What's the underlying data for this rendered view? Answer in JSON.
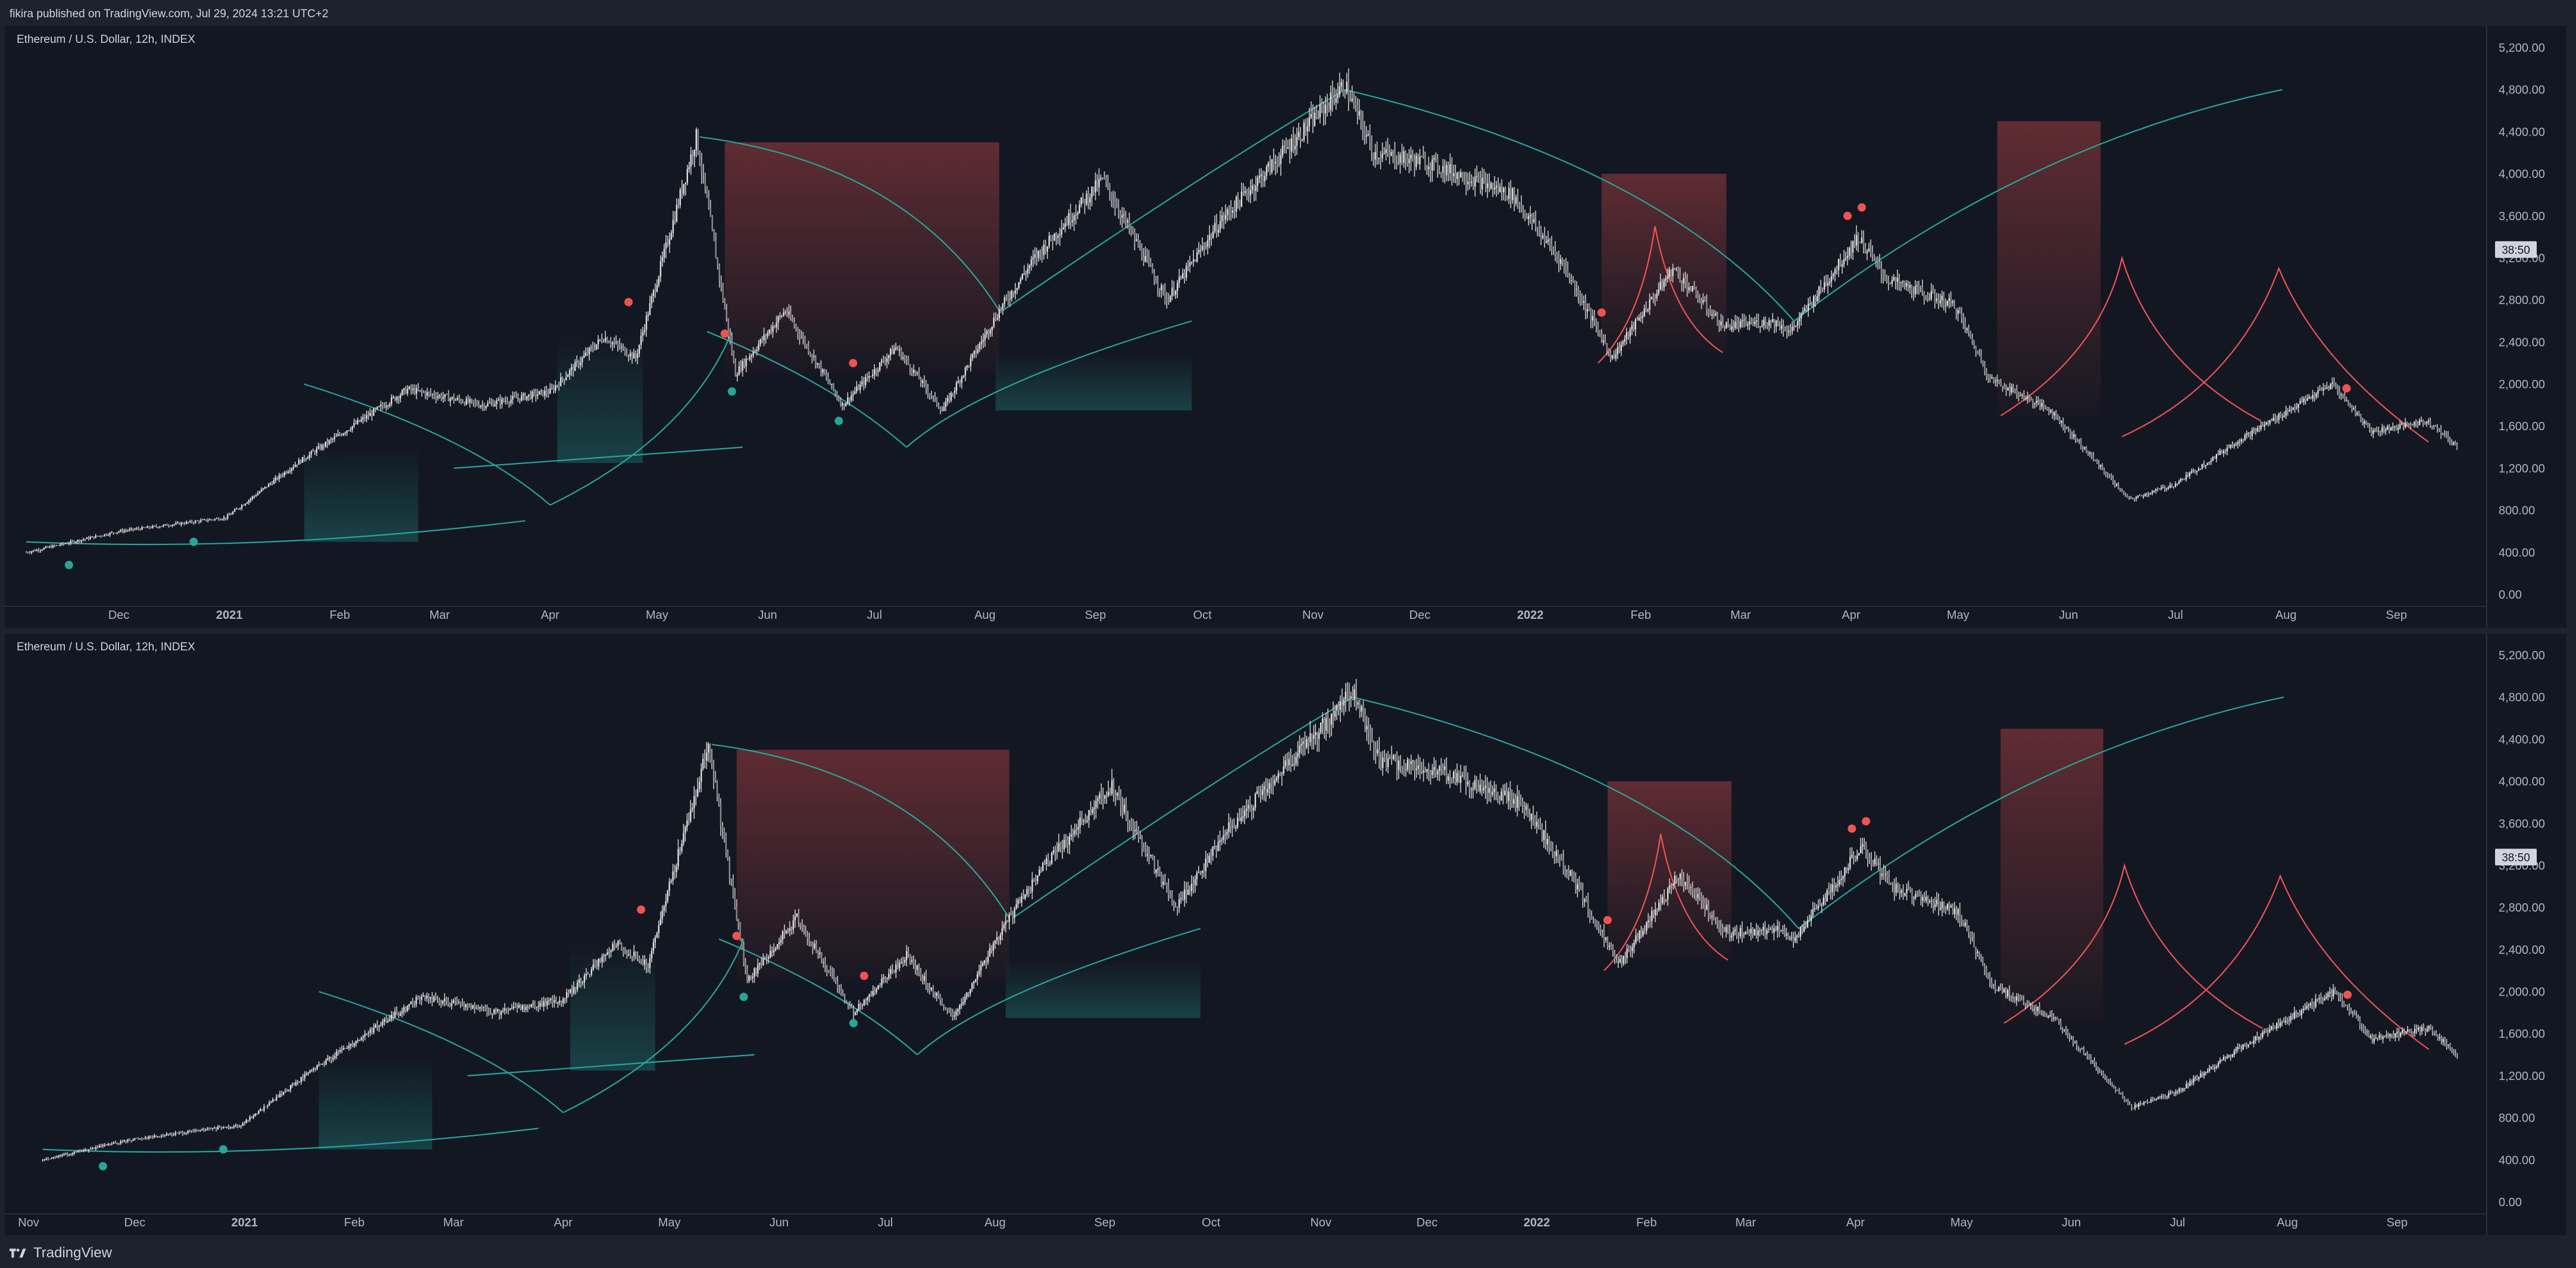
{
  "header": {
    "publisher": "fikira published on TradingView.com, Jul 29, 2024 13:21 UTC+2"
  },
  "footer": {
    "brand": "TradingView",
    "logo_icon": "tradingview-logo-icon"
  },
  "colors": {
    "background": "#131722",
    "panel": "#1e222d",
    "teal": "#26a69a",
    "red": "#ef5350",
    "candles": "#c8c8c8",
    "axis_text": "#b2b5be"
  },
  "chart_data": [
    {
      "type": "candlestick",
      "title": "Ethereum / U.S. Dollar, 12h, INDEX",
      "price_label": "38:50",
      "ylim": [
        0,
        5200
      ],
      "y_ticks": [
        "0.00",
        "400.00",
        "800.00",
        "1,200.00",
        "1,600.00",
        "2,000.00",
        "2,400.00",
        "2,800.00",
        "3,200.00",
        "3,600.00",
        "4,000.00",
        "4,400.00",
        "4,800.00",
        "5,200.00"
      ],
      "x_ticks": [
        "Dec",
        "2021",
        "Feb",
        "Mar",
        "Apr",
        "May",
        "Jun",
        "Jul",
        "Aug",
        "Sep",
        "Oct",
        "Nov",
        "Dec",
        "2022",
        "Feb",
        "Mar",
        "Apr",
        "May",
        "Jun",
        "Jul",
        "Aug",
        "Sep"
      ],
      "series": [
        {
          "x": [
            "2020-11-05",
            "2020-12-01",
            "2020-12-31",
            "2021-01-20",
            "2021-02-20",
            "2021-03-13",
            "2021-04-01",
            "2021-04-16",
            "2021-04-25",
            "2021-05-12",
            "2021-05-23",
            "2021-06-06",
            "2021-06-22",
            "2021-07-07",
            "2021-07-20",
            "2021-08-05",
            "2021-08-15",
            "2021-09-03",
            "2021-09-21",
            "2021-10-06",
            "2021-10-21",
            "2021-11-10",
            "2021-11-18",
            "2021-12-04",
            "2021-12-27",
            "2022-01-10",
            "2022-01-24",
            "2022-02-10",
            "2022-02-24",
            "2022-03-10",
            "2022-03-15",
            "2022-04-03",
            "2022-04-11",
            "2022-04-30",
            "2022-05-10",
            "2022-05-27",
            "2022-06-18",
            "2022-07-01",
            "2022-07-18",
            "2022-08-14",
            "2022-08-25",
            "2022-09-10",
            "2022-09-18"
          ],
          "values": [
            400,
            600,
            730,
            1250,
            1950,
            1800,
            1930,
            2450,
            2250,
            4350,
            2100,
            2700,
            1800,
            2350,
            1750,
            2700,
            3200,
            3950,
            2800,
            3550,
            4100,
            4850,
            4200,
            4100,
            3800,
            3150,
            2250,
            3100,
            2550,
            2600,
            2500,
            3400,
            3000,
            2750,
            2050,
            1750,
            900,
            1050,
            1450,
            2000,
            1550,
            1650,
            1400
          ]
        }
      ],
      "markers": [
        {
          "x": "2020-11-17",
          "y": 280,
          "color": "teal"
        },
        {
          "x": "2020-12-22",
          "y": 500,
          "color": "teal"
        },
        {
          "x": "2021-04-23",
          "y": 2780,
          "color": "red"
        },
        {
          "x": "2021-05-20",
          "y": 2480,
          "color": "red"
        },
        {
          "x": "2021-05-22",
          "y": 1930,
          "color": "teal"
        },
        {
          "x": "2021-06-25",
          "y": 2200,
          "color": "red"
        },
        {
          "x": "2021-06-21",
          "y": 1650,
          "color": "teal"
        },
        {
          "x": "2022-01-21",
          "y": 2680,
          "color": "red"
        },
        {
          "x": "2022-03-31",
          "y": 3600,
          "color": "red"
        },
        {
          "x": "2022-04-04",
          "y": 3680,
          "color": "red"
        },
        {
          "x": "2022-08-18",
          "y": 1960,
          "color": "red"
        }
      ]
    },
    {
      "type": "candlestick",
      "title": "Ethereum / U.S. Dollar, 12h, INDEX",
      "price_label": "38:50",
      "ylim": [
        0,
        5200
      ],
      "y_ticks": [
        "0.00",
        "400.00",
        "800.00",
        "1,200.00",
        "1,600.00",
        "2,000.00",
        "2,400.00",
        "2,800.00",
        "3,200.00",
        "3,600.00",
        "4,000.00",
        "4,400.00",
        "4,800.00",
        "5,200.00"
      ],
      "x_ticks": [
        "Nov",
        "Dec",
        "2021",
        "Feb",
        "Mar",
        "Apr",
        "May",
        "Jun",
        "Jul",
        "Aug",
        "Sep",
        "Oct",
        "Nov",
        "Dec",
        "2022",
        "Feb",
        "Mar",
        "Apr",
        "May",
        "Jun",
        "Jul",
        "Aug",
        "Sep"
      ],
      "series": [
        {
          "x": [
            "2020-11-05",
            "2020-12-01",
            "2020-12-31",
            "2021-01-20",
            "2021-02-20",
            "2021-03-13",
            "2021-04-01",
            "2021-04-16",
            "2021-04-25",
            "2021-05-12",
            "2021-05-23",
            "2021-06-06",
            "2021-06-22",
            "2021-07-07",
            "2021-07-20",
            "2021-08-05",
            "2021-08-15",
            "2021-09-03",
            "2021-09-21",
            "2021-10-06",
            "2021-10-21",
            "2021-11-10",
            "2021-11-18",
            "2021-12-04",
            "2021-12-27",
            "2022-01-10",
            "2022-01-24",
            "2022-02-10",
            "2022-02-24",
            "2022-03-10",
            "2022-03-15",
            "2022-04-03",
            "2022-04-11",
            "2022-04-30",
            "2022-05-10",
            "2022-05-27",
            "2022-06-18",
            "2022-07-01",
            "2022-07-18",
            "2022-08-14",
            "2022-08-25",
            "2022-09-10",
            "2022-09-18"
          ],
          "values": [
            400,
            600,
            730,
            1250,
            1950,
            1800,
            1930,
            2450,
            2250,
            4350,
            2100,
            2700,
            1800,
            2350,
            1750,
            2700,
            3200,
            3950,
            2800,
            3550,
            4100,
            4850,
            4200,
            4100,
            3800,
            3150,
            2250,
            3100,
            2550,
            2600,
            2500,
            3400,
            3000,
            2750,
            2050,
            1750,
            900,
            1050,
            1450,
            2000,
            1550,
            1650,
            1400
          ]
        }
      ],
      "markers": [
        {
          "x": "2020-11-22",
          "y": 340,
          "color": "teal"
        },
        {
          "x": "2020-12-26",
          "y": 500,
          "color": "teal"
        },
        {
          "x": "2021-04-23",
          "y": 2780,
          "color": "red"
        },
        {
          "x": "2021-05-20",
          "y": 2530,
          "color": "red"
        },
        {
          "x": "2021-05-22",
          "y": 1950,
          "color": "teal"
        },
        {
          "x": "2021-06-25",
          "y": 2150,
          "color": "red"
        },
        {
          "x": "2021-06-22",
          "y": 1700,
          "color": "teal"
        },
        {
          "x": "2022-01-21",
          "y": 2680,
          "color": "red"
        },
        {
          "x": "2022-03-31",
          "y": 3550,
          "color": "red"
        },
        {
          "x": "2022-04-04",
          "y": 3620,
          "color": "red"
        },
        {
          "x": "2022-08-18",
          "y": 1970,
          "color": "red"
        }
      ]
    }
  ]
}
